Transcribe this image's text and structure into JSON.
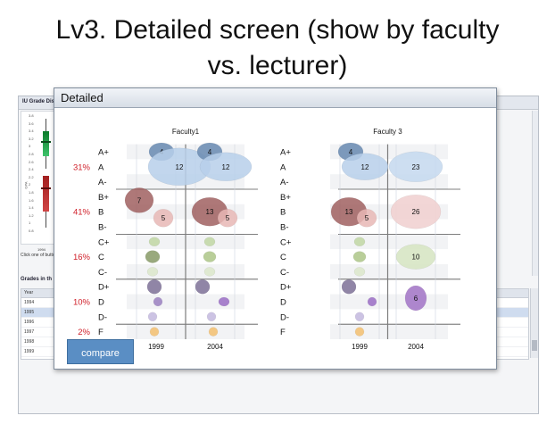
{
  "slide": {
    "title_line1": "Lv3. Detailed screen (show by faculty",
    "title_line2": "vs. lecturer)"
  },
  "background_app": {
    "panel_title": "IU Grade Distri",
    "ticks": [
      "3.8",
      "3.6",
      "3.4",
      "3.2",
      "3",
      "2.8",
      "2.6",
      "2.4",
      "2.2",
      "2",
      "1.8",
      "1.6",
      "1.4",
      "1.2",
      "1",
      "0.8"
    ],
    "axis_label": "GPA",
    "year_label": "1994",
    "hint_text": "Click one of butto",
    "grades_title": "Grades in th",
    "table_header": "Year",
    "table_rows": [
      "1994",
      "1995",
      "1996",
      "1997",
      "1998",
      "1999"
    ],
    "selected_row": "1995"
  },
  "dialog": {
    "title": "Detailed",
    "compare_label": "compare"
  },
  "chart_data": {
    "type": "scatter",
    "panels": [
      {
        "title": "Faculty1",
        "years": [
          "1999",
          "2004"
        ]
      },
      {
        "title": "Faculty 3",
        "years": [
          "1999",
          "2004"
        ]
      }
    ],
    "grades": [
      "A+",
      "A",
      "A-",
      "B+",
      "B",
      "B-",
      "C+",
      "C",
      "C-",
      "D+",
      "D",
      "D-",
      "F"
    ],
    "group_percentages": [
      {
        "group": "A",
        "percent": "31%"
      },
      {
        "group": "B",
        "percent": "41%"
      },
      {
        "group": "C",
        "percent": "16%"
      },
      {
        "group": "D",
        "percent": "10%"
      },
      {
        "group": "F",
        "percent": "2%"
      }
    ],
    "group_colors": {
      "A": "#9bbbe0",
      "B": "#c98f8a",
      "C": "#b5cf9a",
      "D": "#a497c4",
      "F": "#f3c277"
    },
    "bubbles": [
      {
        "panel": 0,
        "col": 0,
        "grade": "A+",
        "value": "4",
        "rx": 14,
        "ry": 10,
        "dx": 6,
        "color": "#6f8fb5",
        "alpha": 0.9
      },
      {
        "panel": 0,
        "col": 0,
        "grade": "A",
        "value": "12",
        "rx": 35,
        "ry": 21,
        "dx": 26,
        "color": "#b7cfea",
        "alpha": 0.85
      },
      {
        "panel": 0,
        "col": 1,
        "grade": "A+",
        "value": "4",
        "rx": 14,
        "ry": 10,
        "dx": -6,
        "color": "#6f8fb5",
        "alpha": 0.9
      },
      {
        "panel": 0,
        "col": 1,
        "grade": "A",
        "value": "12",
        "rx": 29,
        "ry": 16,
        "dx": 12,
        "color": "#b7cfea",
        "alpha": 0.85
      },
      {
        "panel": 1,
        "col": 0,
        "grade": "A+",
        "value": "4",
        "rx": 14,
        "ry": 10,
        "dx": -10,
        "color": "#6f8fb5",
        "alpha": 0.9
      },
      {
        "panel": 1,
        "col": 0,
        "grade": "A",
        "value": "12",
        "rx": 26,
        "ry": 15,
        "dx": 6,
        "color": "#b7cfea",
        "alpha": 0.85
      },
      {
        "panel": 1,
        "col": 1,
        "grade": "A",
        "value": "23",
        "rx": 30,
        "ry": 17,
        "dx": 0,
        "color": "#c4d8ee",
        "alpha": 0.85
      },
      {
        "panel": 0,
        "col": 0,
        "grade": "B+",
        "value": "7",
        "rx": 16,
        "ry": 14,
        "dx": -19,
        "dyo": 4,
        "color": "#9c5a5a",
        "alpha": 0.82
      },
      {
        "panel": 0,
        "col": 0,
        "grade": "B",
        "value": "5",
        "rx": 11,
        "ry": 10,
        "dx": 8,
        "dyo": 7,
        "color": "#e7b7b5",
        "alpha": 0.85
      },
      {
        "panel": 0,
        "col": 1,
        "grade": "B",
        "value": "13",
        "rx": 20,
        "ry": 16,
        "dx": -6,
        "color": "#9c5a5a",
        "alpha": 0.82
      },
      {
        "panel": 0,
        "col": 1,
        "grade": "B",
        "value": "5",
        "rx": 11,
        "ry": 10,
        "dx": 14,
        "dyo": 7,
        "color": "#e7b7b5",
        "alpha": 0.85
      },
      {
        "panel": 1,
        "col": 0,
        "grade": "B",
        "value": "13",
        "rx": 20,
        "ry": 16,
        "dx": -12,
        "color": "#9c5a5a",
        "alpha": 0.82
      },
      {
        "panel": 1,
        "col": 0,
        "grade": "B",
        "value": "5",
        "rx": 11,
        "ry": 10,
        "dx": 8,
        "dyo": 7,
        "color": "#e7b7b5",
        "alpha": 0.85
      },
      {
        "panel": 1,
        "col": 1,
        "grade": "B",
        "value": "26",
        "rx": 28,
        "ry": 19,
        "dx": 0,
        "color": "#f1d2d1",
        "alpha": 0.9
      },
      {
        "panel": 0,
        "col": 0,
        "grade": "C+",
        "value": "",
        "rx": 6,
        "ry": 5,
        "dx": -2,
        "color": "#c3d8a9",
        "alpha": 0.9
      },
      {
        "panel": 0,
        "col": 0,
        "grade": "C",
        "value": "",
        "rx": 8,
        "ry": 7,
        "dx": -4,
        "color": "#8ea06f",
        "alpha": 0.9
      },
      {
        "panel": 0,
        "col": 0,
        "grade": "C-",
        "value": "",
        "rx": 6,
        "ry": 5,
        "dx": -4,
        "color": "#dde8cd",
        "alpha": 0.9
      },
      {
        "panel": 0,
        "col": 1,
        "grade": "C+",
        "value": "",
        "rx": 6,
        "ry": 5,
        "dx": -6,
        "color": "#c3d8a9",
        "alpha": 0.9
      },
      {
        "panel": 0,
        "col": 1,
        "grade": "C",
        "value": "",
        "rx": 7,
        "ry": 6,
        "dx": -6,
        "color": "#b1c98e",
        "alpha": 0.9
      },
      {
        "panel": 0,
        "col": 1,
        "grade": "C-",
        "value": "",
        "rx": 6,
        "ry": 5,
        "dx": -6,
        "color": "#dde8cd",
        "alpha": 0.9
      },
      {
        "panel": 1,
        "col": 0,
        "grade": "C+",
        "value": "",
        "rx": 6,
        "ry": 5,
        "dx": 0,
        "color": "#c3d8a9",
        "alpha": 0.9
      },
      {
        "panel": 1,
        "col": 0,
        "grade": "C",
        "value": "",
        "rx": 7,
        "ry": 6,
        "dx": 0,
        "color": "#b1c98e",
        "alpha": 0.9
      },
      {
        "panel": 1,
        "col": 0,
        "grade": "C-",
        "value": "",
        "rx": 6,
        "ry": 5,
        "dx": 0,
        "color": "#dde8cd",
        "alpha": 0.9
      },
      {
        "panel": 1,
        "col": 1,
        "grade": "C",
        "value": "10",
        "rx": 22,
        "ry": 14,
        "dx": 0,
        "color": "#d7e5c4",
        "alpha": 0.9
      },
      {
        "panel": 0,
        "col": 0,
        "grade": "D+",
        "value": "",
        "rx": 8,
        "ry": 8,
        "dx": -2,
        "color": "#7c7096",
        "alpha": 0.85
      },
      {
        "panel": 0,
        "col": 0,
        "grade": "D",
        "value": "",
        "rx": 5,
        "ry": 5,
        "dx": 2,
        "color": "#9a7fc0",
        "alpha": 0.85
      },
      {
        "panel": 0,
        "col": 0,
        "grade": "D-",
        "value": "",
        "rx": 5,
        "ry": 5,
        "dx": -4,
        "color": "#c6bde0",
        "alpha": 0.9
      },
      {
        "panel": 0,
        "col": 1,
        "grade": "D+",
        "value": "",
        "rx": 8,
        "ry": 8,
        "dx": -14,
        "color": "#7c7096",
        "alpha": 0.85
      },
      {
        "panel": 0,
        "col": 1,
        "grade": "D",
        "value": "",
        "rx": 6,
        "ry": 5,
        "dx": 10,
        "color": "#9a6cc4",
        "alpha": 0.85
      },
      {
        "panel": 0,
        "col": 1,
        "grade": "D-",
        "value": "",
        "rx": 5,
        "ry": 5,
        "dx": -4,
        "color": "#c6bde0",
        "alpha": 0.9
      },
      {
        "panel": 1,
        "col": 0,
        "grade": "D+",
        "value": "",
        "rx": 8,
        "ry": 8,
        "dx": -12,
        "color": "#7c7096",
        "alpha": 0.85
      },
      {
        "panel": 1,
        "col": 0,
        "grade": "D",
        "value": "",
        "rx": 5,
        "ry": 5,
        "dx": 14,
        "color": "#9a6cc4",
        "alpha": 0.85
      },
      {
        "panel": 1,
        "col": 0,
        "grade": "D-",
        "value": "",
        "rx": 5,
        "ry": 5,
        "dx": 0,
        "color": "#c6bde0",
        "alpha": 0.9
      },
      {
        "panel": 1,
        "col": 1,
        "grade": "D",
        "value": "6",
        "rx": 12,
        "ry": 14,
        "dx": 0,
        "dyo": -4,
        "color": "#a77dc9",
        "alpha": 0.92
      },
      {
        "panel": 0,
        "col": 0,
        "grade": "F",
        "value": "",
        "rx": 5,
        "ry": 5,
        "dx": -2,
        "color": "#f3c277",
        "alpha": 0.9
      },
      {
        "panel": 0,
        "col": 1,
        "grade": "F",
        "value": "",
        "rx": 5,
        "ry": 5,
        "dx": -2,
        "color": "#f3c277",
        "alpha": 0.9
      },
      {
        "panel": 1,
        "col": 0,
        "grade": "F",
        "value": "",
        "rx": 5,
        "ry": 5,
        "dx": 0,
        "color": "#f3c277",
        "alpha": 0.9
      }
    ]
  }
}
